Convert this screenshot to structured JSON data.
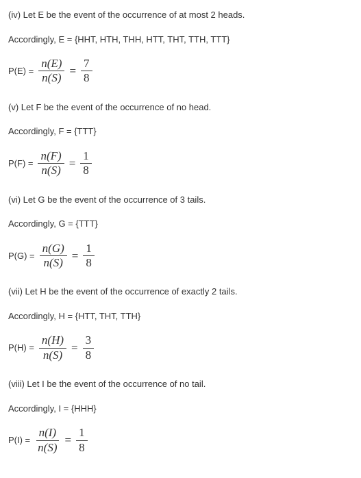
{
  "sections": {
    "iv": {
      "intro": "(iv) Let E be the event of the occurrence of at most 2 heads.",
      "setLine": "Accordingly, E = {HHT, HTH, THH, HTT, THT, TTH, TTT}",
      "pLabel": "P(E) = ",
      "numExpr": "n(E)",
      "denExpr": "n(S)",
      "numVal": "7",
      "denVal": "8"
    },
    "v": {
      "intro": "(v) Let F be the event of the occurrence of no head.",
      "setLine": "Accordingly, F = {TTT}",
      "pLabel": "P(F) = ",
      "numExpr": "n(F)",
      "denExpr": "n(S)",
      "numVal": "1",
      "denVal": "8"
    },
    "vi": {
      "intro": "(vi) Let G be the event of the occurrence of 3 tails.",
      "setLine": "Accordingly, G = {TTT}",
      "pLabel": "P(G) = ",
      "numExpr": "n(G)",
      "denExpr": "n(S)",
      "numVal": "1",
      "denVal": "8"
    },
    "vii": {
      "intro": "(vii) Let H be the event of the occurrence of exactly 2 tails.",
      "setLine": "Accordingly, H = {HTT, THT, TTH}",
      "pLabel": "P(H) = ",
      "numExpr": "n(H)",
      "denExpr": "n(S)",
      "numVal": "3",
      "denVal": "8"
    },
    "viii": {
      "intro": "(viii) Let I be the event of the occurrence of no tail.",
      "setLine": "Accordingly, I = {HHH}",
      "pLabel": "P(I) = ",
      "numExpr": "n(I)",
      "denExpr": "n(S)",
      "numVal": "1",
      "denVal": "8"
    }
  }
}
